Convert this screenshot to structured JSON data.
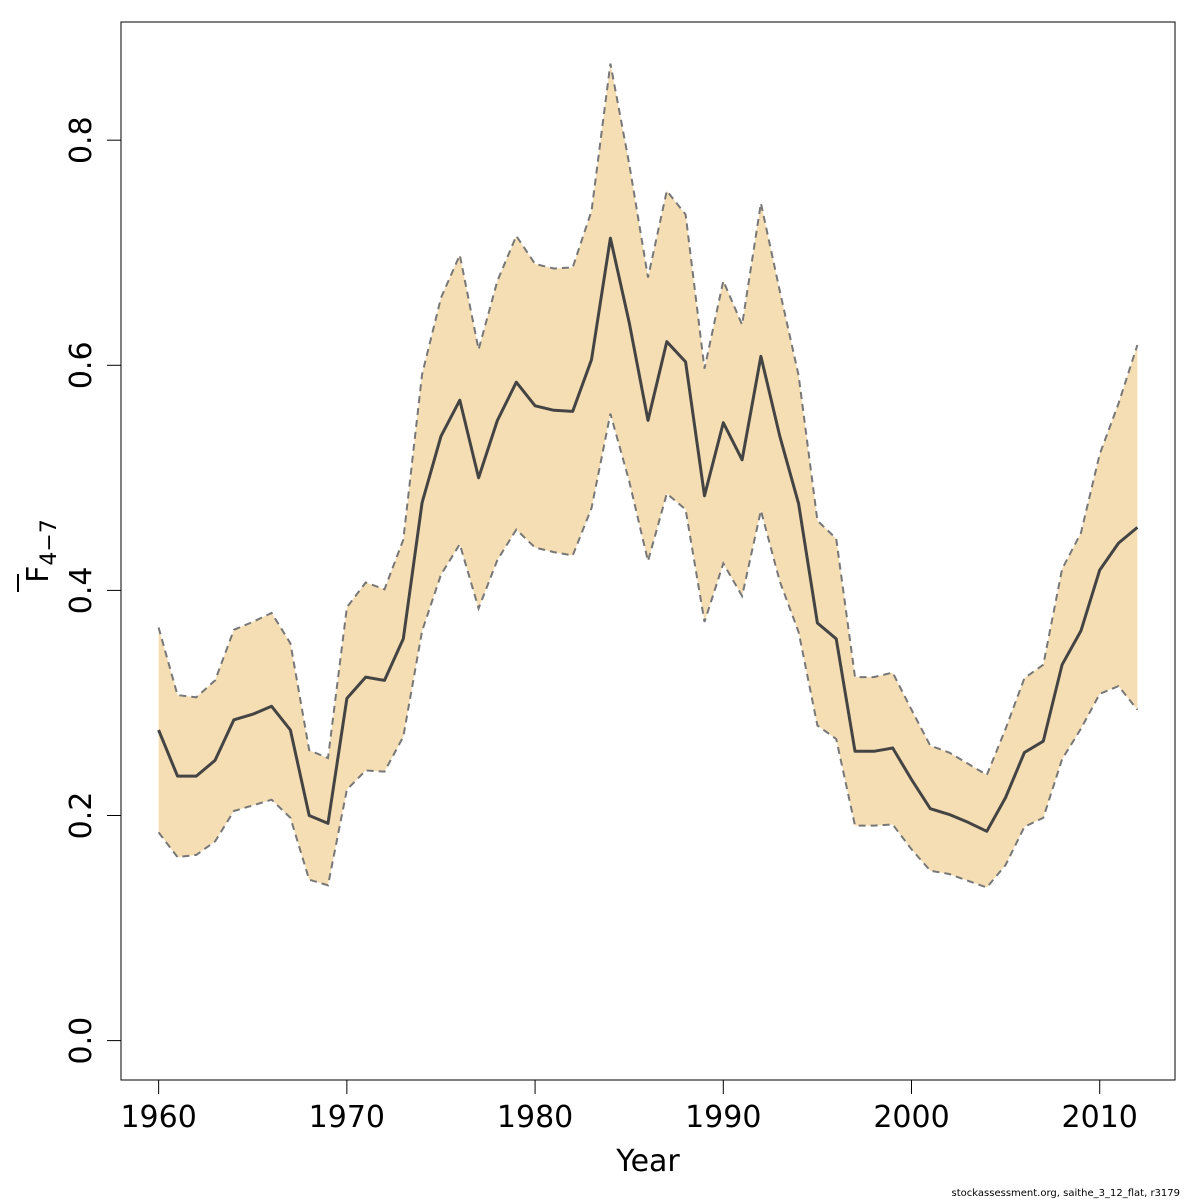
{
  "chart_data": {
    "type": "line",
    "xlabel": "Year",
    "ylabel": {
      "base": "F",
      "subscript": "4−7"
    },
    "xlim": [
      1958,
      2014
    ],
    "ylim": [
      -0.035,
      0.905
    ],
    "x_ticks": [
      1960,
      1970,
      1980,
      1990,
      2000,
      2010
    ],
    "y_ticks": [
      0.0,
      0.2,
      0.4,
      0.6,
      0.8
    ],
    "x_tick_labels": [
      "1960",
      "1970",
      "1980",
      "1990",
      "2000",
      "2010"
    ],
    "y_tick_labels": [
      "0.0",
      "0.2",
      "0.4",
      "0.6",
      "0.8"
    ],
    "band_color": "#F5DEB3",
    "line_color": "#444444",
    "series": [
      {
        "years": [
          1960,
          1961,
          1962,
          1963,
          1964,
          1965,
          1966,
          1967,
          1968,
          1969,
          1970,
          1971,
          1972,
          1973,
          1974,
          1975,
          1976,
          1977,
          1978,
          1979,
          1980,
          1981,
          1982,
          1983,
          1984,
          1985,
          1986,
          1987,
          1988,
          1989,
          1990,
          1991,
          1992,
          1993,
          1994,
          1995,
          1996,
          1997,
          1998,
          1999,
          2000,
          2001,
          2002,
          2003,
          2004,
          2005,
          2006,
          2007,
          2008,
          2009,
          2010,
          2011,
          2012
        ],
        "estimate": [
          0.276,
          0.235,
          0.235,
          0.249,
          0.285,
          0.29,
          0.297,
          0.276,
          0.2,
          0.193,
          0.304,
          0.323,
          0.32,
          0.357,
          0.478,
          0.537,
          0.569,
          0.5,
          0.551,
          0.585,
          0.564,
          0.56,
          0.559,
          0.605,
          0.713,
          0.638,
          0.551,
          0.621,
          0.603,
          0.484,
          0.549,
          0.516,
          0.608,
          0.537,
          0.477,
          0.371,
          0.357,
          0.257,
          0.257,
          0.26,
          0.232,
          0.206,
          0.201,
          0.194,
          0.186,
          0.216,
          0.256,
          0.266,
          0.334,
          0.364,
          0.418,
          0.442,
          0.456
        ],
        "upper": [
          0.367,
          0.307,
          0.305,
          0.32,
          0.365,
          0.372,
          0.38,
          0.353,
          0.258,
          0.251,
          0.385,
          0.407,
          0.401,
          0.445,
          0.592,
          0.66,
          0.698,
          0.614,
          0.675,
          0.715,
          0.69,
          0.686,
          0.687,
          0.737,
          0.868,
          0.779,
          0.678,
          0.755,
          0.734,
          0.597,
          0.675,
          0.636,
          0.744,
          0.666,
          0.591,
          0.462,
          0.446,
          0.323,
          0.323,
          0.327,
          0.294,
          0.262,
          0.256,
          0.246,
          0.236,
          0.277,
          0.322,
          0.334,
          0.419,
          0.451,
          0.521,
          0.566,
          0.618
        ],
        "lower": [
          0.185,
          0.163,
          0.165,
          0.177,
          0.204,
          0.209,
          0.214,
          0.198,
          0.143,
          0.138,
          0.223,
          0.24,
          0.239,
          0.27,
          0.364,
          0.414,
          0.441,
          0.384,
          0.427,
          0.454,
          0.438,
          0.434,
          0.431,
          0.473,
          0.557,
          0.497,
          0.426,
          0.486,
          0.472,
          0.372,
          0.424,
          0.395,
          0.471,
          0.408,
          0.363,
          0.28,
          0.268,
          0.191,
          0.191,
          0.192,
          0.17,
          0.151,
          0.148,
          0.142,
          0.136,
          0.156,
          0.19,
          0.198,
          0.25,
          0.277,
          0.308,
          0.315,
          0.294
        ]
      }
    ]
  },
  "footer_text": "stockassessment.org, saithe_3_12_flat, r3179"
}
